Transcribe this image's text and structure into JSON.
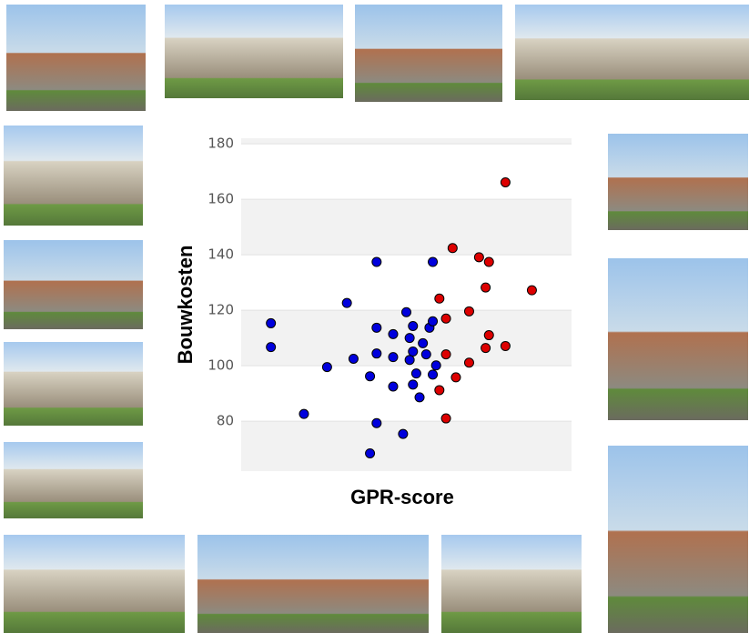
{
  "chart_data": {
    "type": "scatter",
    "x_label": "GPR-score",
    "y_label": "Bouwkosten",
    "xlim": [
      0,
      10
    ],
    "ylim": [
      62,
      182
    ],
    "yticks": [
      80,
      100,
      120,
      140,
      160,
      180
    ],
    "grid": true,
    "series": [
      {
        "color": "#0000dd",
        "x": [
          0.9,
          0.9,
          1.9,
          2.6,
          3.2,
          3.4,
          4.1,
          4.1,
          4.1,
          3.9,
          4.1,
          3.9,
          4.6,
          4.6,
          4.6,
          4.9,
          5.0,
          5.1,
          5.2,
          5.2,
          5.1,
          5.2,
          5.3,
          5.4,
          5.5,
          5.6,
          5.7,
          5.8,
          5.8,
          5.8,
          5.9
        ],
        "values": [
          115.3,
          106.7,
          82.6,
          99.5,
          122.6,
          102.5,
          137.4,
          113.7,
          104.4,
          96.2,
          79.3,
          68.4,
          103.1,
          92.5,
          111.4,
          75.4,
          119.3,
          110.0,
          114.3,
          105.1,
          102.1,
          93.2,
          97.2,
          88.6,
          108.1,
          104.1,
          113.7,
          96.8,
          116.0,
          137.4,
          100.1
        ]
      },
      {
        "color": "#dd0000",
        "x": [
          6.4,
          6.0,
          6.2,
          6.2,
          6.0,
          6.2,
          6.5,
          6.9,
          6.9,
          7.2,
          7.5,
          7.4,
          7.5,
          7.4,
          8.0,
          8.0,
          8.8
        ],
        "values": [
          142.4,
          124.2,
          117.0,
          104.1,
          91.2,
          81.0,
          95.8,
          119.6,
          101.1,
          139.1,
          137.4,
          128.2,
          111.0,
          106.4,
          107.1,
          166.1,
          127.2
        ]
      }
    ]
  }
}
